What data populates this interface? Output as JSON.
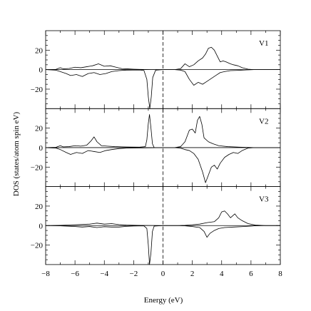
{
  "chart_data": {
    "type": "line",
    "xlabel": "Energy (eV)",
    "ylabel": "DOS (states/atom spin eV)",
    "xlim": [
      -8,
      8
    ],
    "ylim": [
      -40,
      40
    ],
    "xticks": [
      -8,
      -6,
      -4,
      -2,
      0,
      2,
      4,
      6,
      8
    ],
    "yticks": [
      -20,
      0,
      20
    ],
    "fermi_level": 0,
    "panels": [
      {
        "label": "V1",
        "series": [
          {
            "values": [
              [
                -8,
                0
              ],
              [
                -7.3,
                0.3
              ],
              [
                -7,
                2
              ],
              [
                -6.8,
                0.8
              ],
              [
                -6.4,
                1.2
              ],
              [
                -6,
                2.5
              ],
              [
                -5.6,
                2
              ],
              [
                -5.2,
                3
              ],
              [
                -4.8,
                4
              ],
              [
                -4.4,
                6
              ],
              [
                -4,
                3.5
              ],
              [
                -3.6,
                4
              ],
              [
                -3.2,
                2.5
              ],
              [
                -2.8,
                1
              ],
              [
                -2.4,
                0.8
              ],
              [
                -2,
                0.5
              ],
              [
                -1.6,
                0.3
              ],
              [
                -1.2,
                0.2
              ],
              [
                -0.8,
                0
              ],
              [
                0,
                0
              ],
              [
                0.8,
                0
              ],
              [
                1.2,
                1
              ],
              [
                1.5,
                6
              ],
              [
                1.8,
                3
              ],
              [
                2.1,
                5
              ],
              [
                2.4,
                9
              ],
              [
                2.7,
                12
              ],
              [
                2.9,
                16
              ],
              [
                3.1,
                22
              ],
              [
                3.3,
                23
              ],
              [
                3.5,
                20
              ],
              [
                3.7,
                14
              ],
              [
                3.9,
                8
              ],
              [
                4.1,
                9
              ],
              [
                4.3,
                8
              ],
              [
                4.6,
                6
              ],
              [
                4.8,
                5
              ],
              [
                5.1,
                4
              ],
              [
                5.4,
                2
              ],
              [
                5.8,
                0.5
              ],
              [
                6.2,
                0
              ],
              [
                8,
                0
              ]
            ]
          },
          {
            "values": [
              [
                -8,
                0
              ],
              [
                -7.3,
                -0.5
              ],
              [
                -7,
                -2
              ],
              [
                -6.6,
                -4
              ],
              [
                -6.3,
                -6
              ],
              [
                -5.9,
                -5
              ],
              [
                -5.5,
                -7
              ],
              [
                -5.1,
                -4
              ],
              [
                -4.7,
                -3
              ],
              [
                -4.3,
                -5
              ],
              [
                -3.9,
                -4
              ],
              [
                -3.5,
                -2
              ],
              [
                -3,
                -1
              ],
              [
                -2.5,
                -0.5
              ],
              [
                -1.6,
                -0.3
              ],
              [
                -1.3,
                -0.8
              ],
              [
                -1.1,
                -10
              ],
              [
                -1.0,
                -28
              ],
              [
                -0.9,
                -40
              ],
              [
                -0.8,
                -28
              ],
              [
                -0.7,
                -8
              ],
              [
                -0.5,
                -0.5
              ],
              [
                0,
                0
              ],
              [
                0.8,
                0
              ],
              [
                1.2,
                -0.5
              ],
              [
                1.5,
                -2
              ],
              [
                1.8,
                -10
              ],
              [
                2.1,
                -16
              ],
              [
                2.4,
                -13
              ],
              [
                2.7,
                -15
              ],
              [
                3.0,
                -12
              ],
              [
                3.3,
                -9
              ],
              [
                3.6,
                -6
              ],
              [
                3.9,
                -3
              ],
              [
                4.2,
                -2
              ],
              [
                4.6,
                -1
              ],
              [
                5,
                -0.8
              ],
              [
                5.6,
                -0.3
              ],
              [
                6.2,
                0
              ],
              [
                8,
                0
              ]
            ]
          }
        ]
      },
      {
        "label": "V2",
        "series": [
          {
            "values": [
              [
                -8,
                0
              ],
              [
                -7.3,
                0.3
              ],
              [
                -7,
                2
              ],
              [
                -6.8,
                0.8
              ],
              [
                -6.4,
                1
              ],
              [
                -6,
                2
              ],
              [
                -5.6,
                1.5
              ],
              [
                -5.2,
                2.5
              ],
              [
                -4.9,
                7
              ],
              [
                -4.7,
                11
              ],
              [
                -4.5,
                6
              ],
              [
                -4.2,
                2
              ],
              [
                -3.8,
                1.5
              ],
              [
                -3.3,
                1
              ],
              [
                -2.8,
                0.8
              ],
              [
                -2.2,
                0.6
              ],
              [
                -1.6,
                0.5
              ],
              [
                -1.2,
                1
              ],
              [
                -1.1,
                8
              ],
              [
                -1.0,
                25
              ],
              [
                -0.92,
                34
              ],
              [
                -0.82,
                20
              ],
              [
                -0.72,
                4
              ],
              [
                -0.6,
                0
              ],
              [
                0,
                0
              ],
              [
                0.8,
                0
              ],
              [
                1.2,
                1
              ],
              [
                1.5,
                6
              ],
              [
                1.8,
                18
              ],
              [
                2.0,
                19
              ],
              [
                2.2,
                15
              ],
              [
                2.35,
                28
              ],
              [
                2.5,
                32
              ],
              [
                2.65,
                24
              ],
              [
                2.8,
                10
              ],
              [
                3.1,
                6
              ],
              [
                3.4,
                4
              ],
              [
                3.8,
                2
              ],
              [
                4.4,
                1
              ],
              [
                5.2,
                0.5
              ],
              [
                6.2,
                0
              ],
              [
                8,
                0
              ]
            ]
          },
          {
            "values": [
              [
                -8,
                0
              ],
              [
                -7.3,
                -0.5
              ],
              [
                -7,
                -2
              ],
              [
                -6.6,
                -5
              ],
              [
                -6.3,
                -7
              ],
              [
                -5.9,
                -5
              ],
              [
                -5.5,
                -6
              ],
              [
                -5.1,
                -3
              ],
              [
                -4.7,
                -4
              ],
              [
                -4.3,
                -5
              ],
              [
                -3.9,
                -3
              ],
              [
                -3.5,
                -2
              ],
              [
                -3,
                -1
              ],
              [
                -2.5,
                -0.5
              ],
              [
                -1.5,
                -0.3
              ],
              [
                -1,
                -0.2
              ],
              [
                0,
                0
              ],
              [
                0.8,
                0
              ],
              [
                1.2,
                -0.5
              ],
              [
                1.5,
                -2
              ],
              [
                1.8,
                -3
              ],
              [
                2.1,
                -6
              ],
              [
                2.4,
                -12
              ],
              [
                2.7,
                -25
              ],
              [
                2.9,
                -36
              ],
              [
                3.1,
                -28
              ],
              [
                3.3,
                -20
              ],
              [
                3.5,
                -18
              ],
              [
                3.7,
                -22
              ],
              [
                3.9,
                -16
              ],
              [
                4.2,
                -10
              ],
              [
                4.5,
                -7
              ],
              [
                4.8,
                -5
              ],
              [
                5.1,
                -6
              ],
              [
                5.4,
                -3
              ],
              [
                5.8,
                -0.5
              ],
              [
                6.2,
                0
              ],
              [
                8,
                0
              ]
            ]
          }
        ]
      },
      {
        "label": "V3",
        "series": [
          {
            "values": [
              [
                -8,
                0
              ],
              [
                -7,
                0.3
              ],
              [
                -6,
                0.8
              ],
              [
                -5,
                1.5
              ],
              [
                -4.5,
                2.5
              ],
              [
                -4,
                1.5
              ],
              [
                -3.5,
                2
              ],
              [
                -3,
                1
              ],
              [
                -2.5,
                0.5
              ],
              [
                -1.5,
                0.2
              ],
              [
                0,
                0
              ],
              [
                1,
                0
              ],
              [
                1.5,
                0.3
              ],
              [
                2,
                0.8
              ],
              [
                2.5,
                1.5
              ],
              [
                3,
                3
              ],
              [
                3.5,
                4
              ],
              [
                3.8,
                8
              ],
              [
                4.0,
                14
              ],
              [
                4.2,
                15
              ],
              [
                4.4,
                12
              ],
              [
                4.6,
                8
              ],
              [
                4.9,
                12
              ],
              [
                5.1,
                8
              ],
              [
                5.4,
                5
              ],
              [
                5.8,
                2
              ],
              [
                6.3,
                0.5
              ],
              [
                7,
                0
              ],
              [
                8,
                0
              ]
            ]
          },
          {
            "values": [
              [
                -8,
                0
              ],
              [
                -7,
                -0.3
              ],
              [
                -6,
                -1
              ],
              [
                -5.5,
                -1.5
              ],
              [
                -5,
                -1
              ],
              [
                -4.5,
                -2
              ],
              [
                -4,
                -1.2
              ],
              [
                -3.5,
                -1.5
              ],
              [
                -3,
                -1.5
              ],
              [
                -2.5,
                -0.8
              ],
              [
                -2,
                -0.4
              ],
              [
                -1.3,
                -0.3
              ],
              [
                -1.1,
                -3
              ],
              [
                -1.0,
                -20
              ],
              [
                -0.92,
                -40
              ],
              [
                -0.82,
                -28
              ],
              [
                -0.72,
                -6
              ],
              [
                -0.6,
                -0.5
              ],
              [
                0,
                0
              ],
              [
                1,
                0
              ],
              [
                1.5,
                -0.3
              ],
              [
                2,
                -1
              ],
              [
                2.5,
                -2
              ],
              [
                2.8,
                -6
              ],
              [
                3.0,
                -12
              ],
              [
                3.2,
                -8
              ],
              [
                3.5,
                -5
              ],
              [
                3.8,
                -3
              ],
              [
                4.2,
                -2
              ],
              [
                4.8,
                -1.5
              ],
              [
                5.5,
                -1
              ],
              [
                6.2,
                -0.3
              ],
              [
                7,
                0
              ],
              [
                8,
                0
              ]
            ]
          }
        ]
      }
    ]
  }
}
